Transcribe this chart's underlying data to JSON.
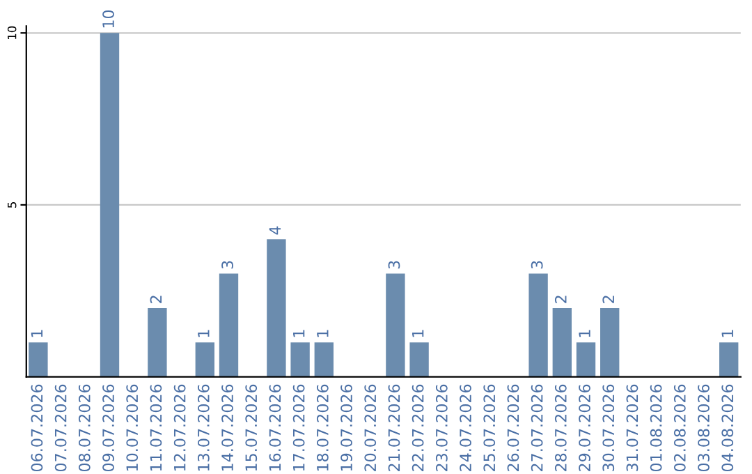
{
  "chart_data": {
    "type": "bar",
    "categories": [
      "06.07.2026",
      "07.07.2026",
      "08.07.2026",
      "09.07.2026",
      "10.07.2026",
      "11.07.2026",
      "12.07.2026",
      "13.07.2026",
      "14.07.2026",
      "15.07.2026",
      "16.07.2026",
      "17.07.2026",
      "18.07.2026",
      "19.07.2026",
      "20.07.2026",
      "21.07.2026",
      "22.07.2026",
      "23.07.2026",
      "24.07.2026",
      "25.07.2026",
      "26.07.2026",
      "27.07.2026",
      "28.07.2026",
      "29.07.2026",
      "30.07.2026",
      "31.07.2026",
      "01.08.2026",
      "02.08.2026",
      "03.08.2026",
      "04.08.2026"
    ],
    "values": [
      1,
      0,
      0,
      10,
      0,
      2,
      0,
      1,
      3,
      0,
      4,
      1,
      1,
      0,
      0,
      3,
      1,
      0,
      0,
      0,
      0,
      3,
      2,
      1,
      2,
      0,
      0,
      0,
      0,
      1
    ],
    "value_labels": [
      "1",
      null,
      null,
      "10",
      null,
      "2",
      null,
      "1",
      "3",
      null,
      "4",
      "1",
      "1",
      null,
      null,
      "3",
      "1",
      null,
      null,
      null,
      null,
      "3",
      "2",
      "1",
      "2",
      null,
      null,
      null,
      null,
      "1"
    ],
    "color": "#6b8cae",
    "ylim": [
      0,
      10.2
    ],
    "yticks": [
      5,
      10
    ],
    "grid": "y"
  }
}
